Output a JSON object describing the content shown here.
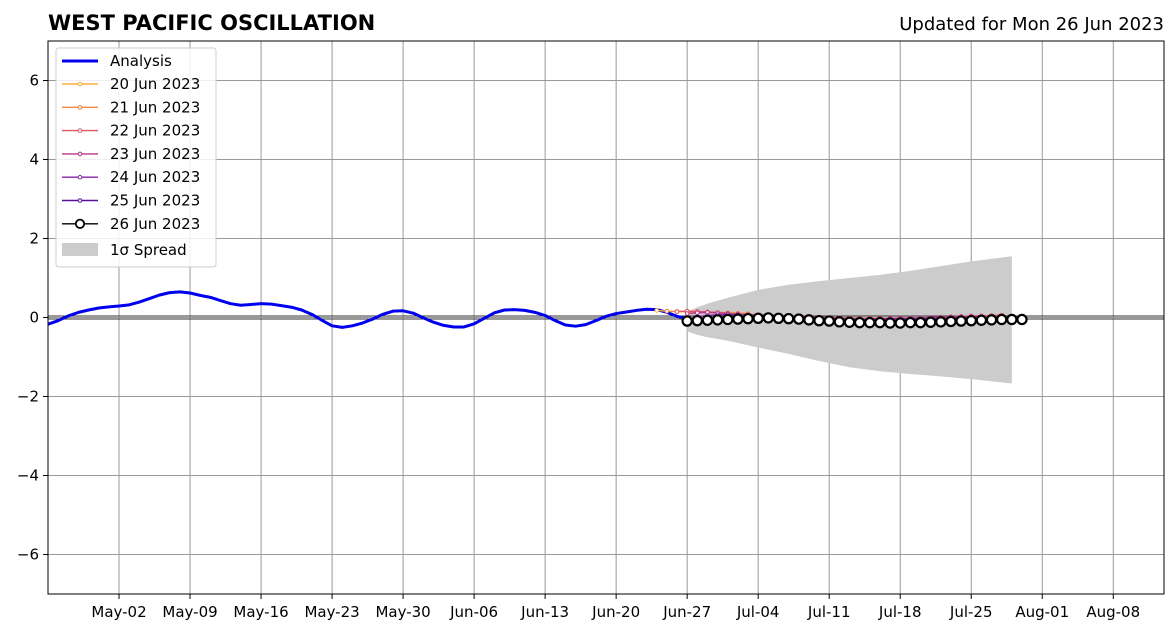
{
  "chart_data": {
    "type": "line",
    "title": "WEST PACIFIC OSCILLATION",
    "subtitle": "Updated for Mon 26 Jun 2023",
    "xlabel": "",
    "ylabel": "",
    "xlim": [
      "2023-04-25",
      "2023-08-13"
    ],
    "ylim": [
      -7,
      7
    ],
    "grid": true,
    "legend_position": "top-left",
    "x_ticks": [
      "May-02",
      "May-09",
      "May-16",
      "May-23",
      "May-30",
      "Jun-06",
      "Jun-13",
      "Jun-20",
      "Jun-27",
      "Jul-04",
      "Jul-11",
      "Jul-18",
      "Jul-25",
      "Aug-01",
      "Aug-08"
    ],
    "y_ticks": [
      6,
      4,
      2,
      0,
      -2,
      -4,
      -6
    ],
    "y_tick_labels": [
      "6",
      "4",
      "2",
      "0",
      "−2",
      "−4",
      "−6"
    ],
    "analysis": {
      "name": "Analysis",
      "color": "#0000ee",
      "points": [
        [
          "2023-04-25",
          -0.17
        ],
        [
          "2023-04-26",
          -0.08
        ],
        [
          "2023-04-27",
          0.04
        ],
        [
          "2023-04-28",
          0.13
        ],
        [
          "2023-04-29",
          0.19
        ],
        [
          "2023-04-30",
          0.24
        ],
        [
          "2023-05-01",
          0.27
        ],
        [
          "2023-05-02",
          0.29
        ],
        [
          "2023-05-03",
          0.32
        ],
        [
          "2023-05-04",
          0.39
        ],
        [
          "2023-05-05",
          0.48
        ],
        [
          "2023-05-06",
          0.57
        ],
        [
          "2023-05-07",
          0.63
        ],
        [
          "2023-05-08",
          0.65
        ],
        [
          "2023-05-09",
          0.62
        ],
        [
          "2023-05-10",
          0.56
        ],
        [
          "2023-05-11",
          0.51
        ],
        [
          "2023-05-12",
          0.43
        ],
        [
          "2023-05-13",
          0.35
        ],
        [
          "2023-05-14",
          0.31
        ],
        [
          "2023-05-15",
          0.33
        ],
        [
          "2023-05-16",
          0.35
        ],
        [
          "2023-05-17",
          0.34
        ],
        [
          "2023-05-18",
          0.3
        ],
        [
          "2023-05-19",
          0.26
        ],
        [
          "2023-05-20",
          0.19
        ],
        [
          "2023-05-21",
          0.08
        ],
        [
          "2023-05-22",
          -0.07
        ],
        [
          "2023-05-23",
          -0.21
        ],
        [
          "2023-05-24",
          -0.25
        ],
        [
          "2023-05-25",
          -0.21
        ],
        [
          "2023-05-26",
          -0.14
        ],
        [
          "2023-05-27",
          -0.04
        ],
        [
          "2023-05-28",
          0.08
        ],
        [
          "2023-05-29",
          0.16
        ],
        [
          "2023-05-30",
          0.17
        ],
        [
          "2023-05-31",
          0.11
        ],
        [
          "2023-06-01",
          -0.01
        ],
        [
          "2023-06-02",
          -0.12
        ],
        [
          "2023-06-03",
          -0.2
        ],
        [
          "2023-06-04",
          -0.24
        ],
        [
          "2023-06-05",
          -0.24
        ],
        [
          "2023-06-06",
          -0.16
        ],
        [
          "2023-06-07",
          -0.02
        ],
        [
          "2023-06-08",
          0.12
        ],
        [
          "2023-06-09",
          0.19
        ],
        [
          "2023-06-10",
          0.2
        ],
        [
          "2023-06-11",
          0.18
        ],
        [
          "2023-06-12",
          0.13
        ],
        [
          "2023-06-13",
          0.05
        ],
        [
          "2023-06-14",
          -0.08
        ],
        [
          "2023-06-15",
          -0.19
        ],
        [
          "2023-06-16",
          -0.22
        ],
        [
          "2023-06-17",
          -0.18
        ],
        [
          "2023-06-18",
          -0.08
        ],
        [
          "2023-06-19",
          0.03
        ],
        [
          "2023-06-20",
          0.1
        ],
        [
          "2023-06-21",
          0.14
        ],
        [
          "2023-06-22",
          0.18
        ],
        [
          "2023-06-23",
          0.21
        ],
        [
          "2023-06-24",
          0.2
        ],
        [
          "2023-06-25",
          0.13
        ],
        [
          "2023-06-26",
          0.03
        ],
        [
          "2023-06-27",
          -0.03
        ],
        [
          "2023-06-28",
          -0.06
        ],
        [
          "2023-06-29",
          -0.07
        ]
      ]
    },
    "forecasts": [
      {
        "name": "20 Jun 2023",
        "color": "#f9b233",
        "start": "2023-06-24",
        "values": [
          0.18,
          0.16,
          0.15,
          0.14,
          0.13,
          0.13,
          0.12,
          0.12
        ]
      },
      {
        "name": "21 Jun 2023",
        "color": "#ee8844",
        "start": "2023-06-25",
        "values": [
          0.16,
          0.15,
          0.16,
          0.15,
          0.14,
          0.13,
          0.12,
          0.11,
          0.1
        ]
      },
      {
        "name": "22 Jun 2023",
        "color": "#dd5566",
        "start": "2023-06-26",
        "values": [
          0.15,
          0.16,
          0.15,
          0.14,
          0.12,
          0.1,
          0.09,
          0.08,
          0.07,
          0.06,
          0.05,
          0.04,
          0.03,
          0.02,
          0.01,
          0.0,
          -0.01,
          -0.01,
          -0.02,
          -0.02,
          -0.02,
          -0.02,
          -0.01,
          -0.01,
          -0.01,
          0.0,
          0.01,
          0.02,
          0.03,
          0.04,
          0.04,
          0.05,
          0.06
        ]
      },
      {
        "name": "23 Jun 2023",
        "color": "#bb3388",
        "start": "2023-06-27",
        "values": [
          0.1,
          0.12,
          0.13,
          0.12,
          0.1,
          0.08,
          0.06,
          0.05,
          0.03,
          0.02,
          0.01,
          0.0,
          -0.01,
          -0.02,
          -0.03,
          -0.03,
          -0.04,
          -0.04,
          -0.04,
          -0.03,
          -0.03,
          -0.02,
          -0.02,
          -0.01,
          0.0,
          0.0,
          0.01,
          0.02,
          0.02,
          0.03
        ]
      },
      {
        "name": "24 Jun 2023",
        "color": "#8822aa",
        "start": "2023-06-28",
        "values": [
          0.02,
          0.05,
          0.07,
          0.07,
          0.06,
          0.05,
          0.03,
          0.02,
          0.01,
          0.0,
          -0.01,
          -0.02,
          -0.03,
          -0.04,
          -0.05,
          -0.05,
          -0.05,
          -0.05,
          -0.05,
          -0.04,
          -0.04,
          -0.03,
          -0.03,
          -0.02,
          -0.02,
          -0.01,
          -0.01,
          0.0,
          0.0
        ]
      },
      {
        "name": "25 Jun 2023",
        "color": "#551199",
        "start": "2023-06-29",
        "values": [
          -0.04,
          -0.02,
          0.0,
          0.01,
          0.01,
          0.0,
          -0.01,
          -0.02,
          -0.03,
          -0.04,
          -0.05,
          -0.06,
          -0.07,
          -0.07,
          -0.08,
          -0.08,
          -0.08,
          -0.08,
          -0.07,
          -0.07,
          -0.06,
          -0.06,
          -0.05,
          -0.05,
          -0.04,
          -0.04,
          -0.04,
          -0.03
        ]
      },
      {
        "name": "26 Jun 2023",
        "color": "#000000",
        "start": "2023-06-27",
        "values": [
          -0.09,
          -0.08,
          -0.07,
          -0.06,
          -0.05,
          -0.04,
          -0.03,
          -0.02,
          -0.01,
          -0.02,
          -0.03,
          -0.04,
          -0.06,
          -0.08,
          -0.09,
          -0.11,
          -0.12,
          -0.13,
          -0.13,
          -0.13,
          -0.14,
          -0.14,
          -0.13,
          -0.13,
          -0.12,
          -0.11,
          -0.1,
          -0.09,
          -0.08,
          -0.07,
          -0.06,
          -0.05,
          -0.05,
          -0.05
        ]
      }
    ],
    "spread": {
      "name": "1σ Spread",
      "color": "#cccccc",
      "points": [
        [
          "2023-06-27",
          0.15,
          -0.35
        ],
        [
          "2023-06-28",
          0.26,
          -0.44
        ],
        [
          "2023-06-29",
          0.35,
          -0.5
        ],
        [
          "2023-07-01",
          0.5,
          -0.59
        ],
        [
          "2023-07-04",
          0.7,
          -0.76
        ],
        [
          "2023-07-07",
          0.83,
          -0.92
        ],
        [
          "2023-07-10",
          0.92,
          -1.1
        ],
        [
          "2023-07-13",
          1.0,
          -1.26
        ],
        [
          "2023-07-16",
          1.08,
          -1.36
        ],
        [
          "2023-07-19",
          1.18,
          -1.43
        ],
        [
          "2023-07-22",
          1.3,
          -1.49
        ],
        [
          "2023-07-25",
          1.42,
          -1.56
        ],
        [
          "2023-07-29",
          1.55,
          -1.67
        ]
      ]
    }
  }
}
